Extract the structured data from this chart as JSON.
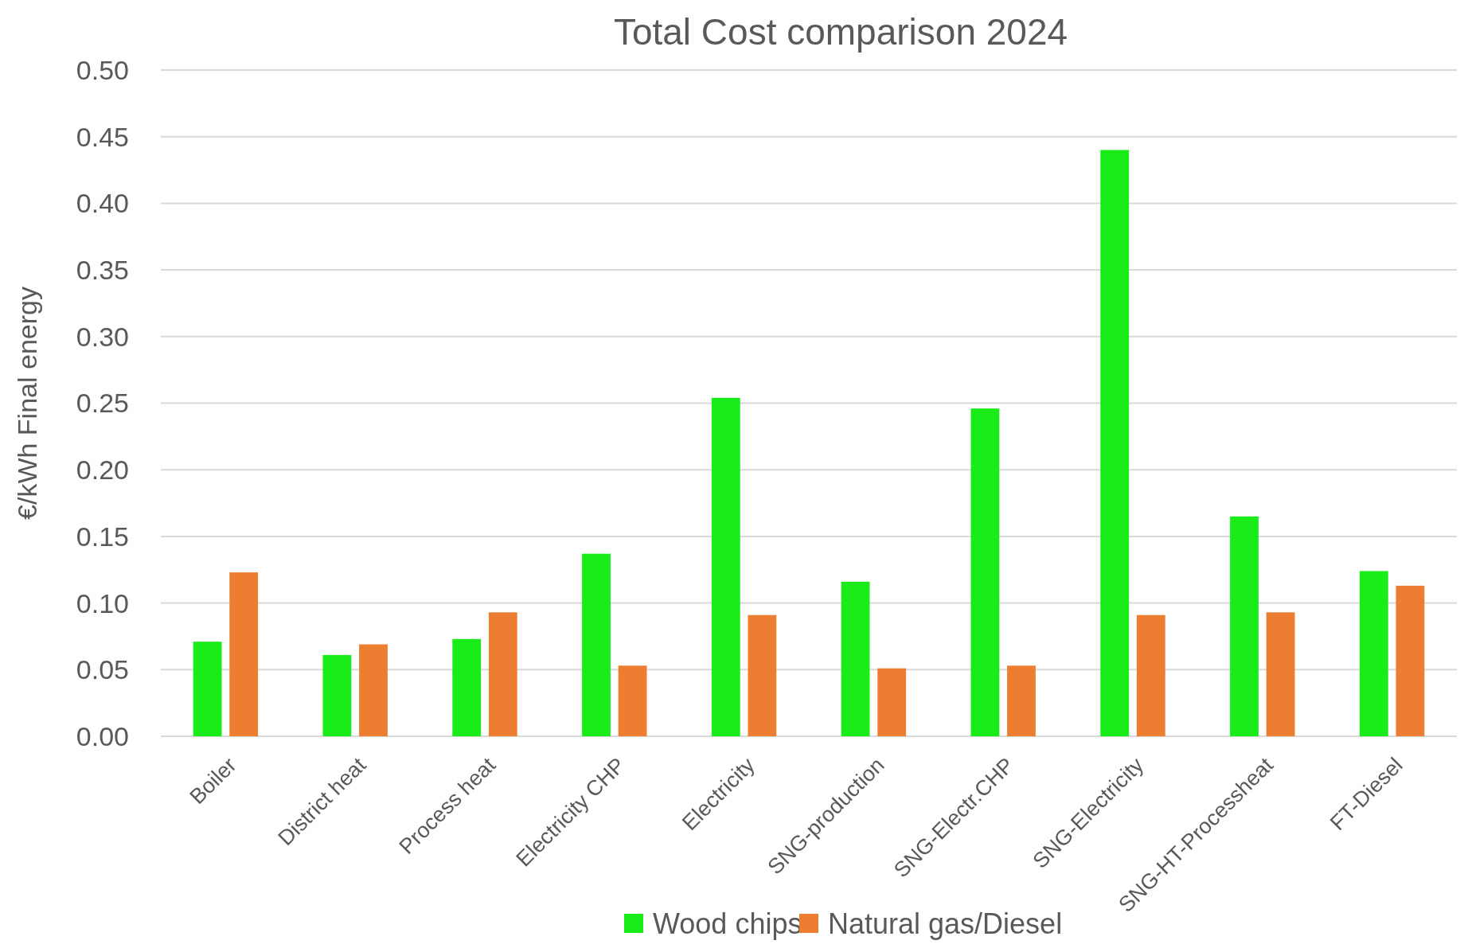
{
  "chart_data": {
    "type": "bar",
    "title": "Total Cost comparison 2024",
    "ylabel": "€/kWh Final energy",
    "categories": [
      "Boiler",
      "District heat",
      "Process heat",
      "Electricity CHP",
      "Electricity",
      "SNG-production",
      "SNG-Electr.CHP",
      "SNG-Electricity",
      "SNG-HT-Processheat",
      "FT-Diesel"
    ],
    "series": [
      {
        "name": "Wood chips",
        "color": "#19ec19",
        "values": [
          0.071,
          0.061,
          0.073,
          0.137,
          0.254,
          0.116,
          0.246,
          0.44,
          0.165,
          0.124
        ]
      },
      {
        "name": "Natural gas/Diesel",
        "color": "#ed7d31",
        "values": [
          0.123,
          0.069,
          0.093,
          0.053,
          0.091,
          0.051,
          0.053,
          0.091,
          0.093,
          0.113
        ]
      }
    ],
    "ylim": [
      0,
      0.5
    ],
    "yticks": [
      {
        "value": 0,
        "label": "0.00"
      },
      {
        "value": 0.05,
        "label": "0.05"
      },
      {
        "value": 0.1,
        "label": "0.10"
      },
      {
        "value": 0.15,
        "label": "0.15"
      },
      {
        "value": 0.2,
        "label": "0.20"
      },
      {
        "value": 0.25,
        "label": "0.25"
      },
      {
        "value": 0.3,
        "label": "0.30"
      },
      {
        "value": 0.35,
        "label": "0.35"
      },
      {
        "value": 0.4,
        "label": "0.40"
      },
      {
        "value": 0.45,
        "label": "0.45"
      },
      {
        "value": 0.5,
        "label": "0.50"
      }
    ],
    "grid": "y",
    "legend": "bottom"
  }
}
